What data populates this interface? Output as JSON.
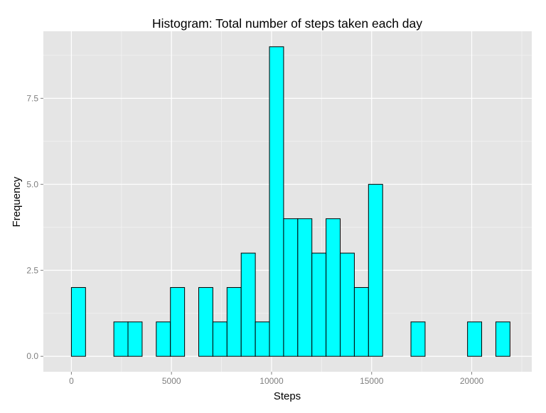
{
  "chart_data": {
    "type": "bar",
    "subtype": "histogram",
    "title": "Histogram: Total number of steps taken each day",
    "xlabel": "Steps",
    "ylabel": "Frequency",
    "xlim": [
      -1400,
      23000
    ],
    "ylim": [
      -0.45,
      9.45
    ],
    "x_ticks": [
      0,
      5000,
      10000,
      15000,
      20000
    ],
    "x_tick_labels": [
      "0",
      "5000",
      "10000",
      "15000",
      "20000"
    ],
    "y_ticks": [
      0.0,
      2.5,
      5.0,
      7.5
    ],
    "y_tick_labels": [
      "0.0",
      "2.5",
      "5.0",
      "7.5"
    ],
    "bin_width": 706.8,
    "bins": [
      {
        "start": -706.8,
        "end": 0.0,
        "count": 0
      },
      {
        "start": 0.0,
        "end": 706.8,
        "count": 2
      },
      {
        "start": 706.8,
        "end": 1413.6,
        "count": 0
      },
      {
        "start": 1413.6,
        "end": 2120.4,
        "count": 0
      },
      {
        "start": 2120.4,
        "end": 2827.2,
        "count": 1
      },
      {
        "start": 2827.2,
        "end": 3534.0,
        "count": 1
      },
      {
        "start": 3534.0,
        "end": 4240.8,
        "count": 0
      },
      {
        "start": 4240.8,
        "end": 4947.6,
        "count": 1
      },
      {
        "start": 4947.6,
        "end": 5654.4,
        "count": 2
      },
      {
        "start": 5654.4,
        "end": 6361.2,
        "count": 0
      },
      {
        "start": 6361.2,
        "end": 7068.0,
        "count": 2
      },
      {
        "start": 7068.0,
        "end": 7774.8,
        "count": 1
      },
      {
        "start": 7774.8,
        "end": 8481.6,
        "count": 2
      },
      {
        "start": 8481.6,
        "end": 9188.4,
        "count": 3
      },
      {
        "start": 9188.4,
        "end": 9895.2,
        "count": 1
      },
      {
        "start": 9895.2,
        "end": 10602.0,
        "count": 9
      },
      {
        "start": 10602.0,
        "end": 11308.8,
        "count": 4
      },
      {
        "start": 11308.8,
        "end": 12015.6,
        "count": 4
      },
      {
        "start": 12015.6,
        "end": 12722.4,
        "count": 3
      },
      {
        "start": 12722.4,
        "end": 13429.2,
        "count": 4
      },
      {
        "start": 13429.2,
        "end": 14136.0,
        "count": 3
      },
      {
        "start": 14136.0,
        "end": 14842.8,
        "count": 2
      },
      {
        "start": 14842.8,
        "end": 15549.6,
        "count": 5
      },
      {
        "start": 15549.6,
        "end": 16256.4,
        "count": 0
      },
      {
        "start": 16256.4,
        "end": 16963.2,
        "count": 0
      },
      {
        "start": 16963.2,
        "end": 17670.0,
        "count": 1
      },
      {
        "start": 17670.0,
        "end": 18376.8,
        "count": 0
      },
      {
        "start": 18376.8,
        "end": 19083.6,
        "count": 0
      },
      {
        "start": 19083.6,
        "end": 19790.4,
        "count": 0
      },
      {
        "start": 19790.4,
        "end": 20497.2,
        "count": 1
      },
      {
        "start": 20497.2,
        "end": 21204.0,
        "count": 0
      },
      {
        "start": 21204.0,
        "end": 21910.8,
        "count": 1
      },
      {
        "start": 21910.8,
        "end": 22617.6,
        "count": 0
      }
    ],
    "grid": true,
    "legend": "none",
    "colors": {
      "bar_fill": "#00ffff",
      "bar_stroke": "#000000",
      "panel_background": "#e5e5e5",
      "grid_major": "#ffffff",
      "grid_minor": "#f2f2f2",
      "tick_label": "#7f7f7f",
      "text": "#000000"
    }
  }
}
